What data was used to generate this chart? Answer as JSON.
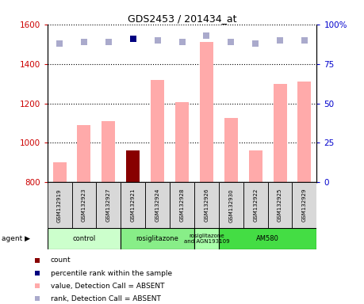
{
  "title": "GDS2453 / 201434_at",
  "samples": [
    "GSM132919",
    "GSM132923",
    "GSM132927",
    "GSM132921",
    "GSM132924",
    "GSM132928",
    "GSM132926",
    "GSM132930",
    "GSM132922",
    "GSM132925",
    "GSM132929"
  ],
  "values": [
    900,
    1090,
    1110,
    960,
    1320,
    1205,
    1510,
    1125,
    960,
    1300,
    1310
  ],
  "ranks": [
    88,
    89,
    89,
    91,
    90,
    89,
    93,
    89,
    88,
    90,
    90
  ],
  "absent_mask": [
    true,
    true,
    true,
    false,
    true,
    true,
    true,
    true,
    true,
    true,
    true
  ],
  "count_bar_index": 3,
  "rank_highlight_index": 3,
  "ylim_left": [
    800,
    1600
  ],
  "ylim_right": [
    0,
    100
  ],
  "yticks_left": [
    800,
    1000,
    1200,
    1400,
    1600
  ],
  "yticks_right": [
    0,
    25,
    50,
    75,
    100
  ],
  "ytick_labels_right": [
    "0",
    "25",
    "50",
    "75",
    "100%"
  ],
  "left_color": "#cc0000",
  "right_color": "#0000cc",
  "pink_bar_color": "#ffaaaa",
  "dark_red_color": "#880000",
  "light_purple_color": "#aaaacc",
  "dark_blue_color": "#000080",
  "agent_groups": [
    {
      "label": "control",
      "start": 0,
      "end": 3,
      "color": "#ccffcc"
    },
    {
      "label": "rosiglitazone",
      "start": 3,
      "end": 6,
      "color": "#88ee88"
    },
    {
      "label": "rosiglitazone\nand AGN193109",
      "start": 6,
      "end": 7,
      "color": "#aaffaa"
    },
    {
      "label": "AM580",
      "start": 7,
      "end": 11,
      "color": "#44dd44"
    }
  ],
  "agent_label": "agent",
  "legend_items": [
    {
      "label": "count",
      "color": "#880000"
    },
    {
      "label": "percentile rank within the sample",
      "color": "#000080"
    },
    {
      "label": "value, Detection Call = ABSENT",
      "color": "#ffaaaa"
    },
    {
      "label": "rank, Detection Call = ABSENT",
      "color": "#aaaacc"
    }
  ],
  "bar_width": 0.55,
  "marker_size": 6,
  "grid_style": "dotted"
}
